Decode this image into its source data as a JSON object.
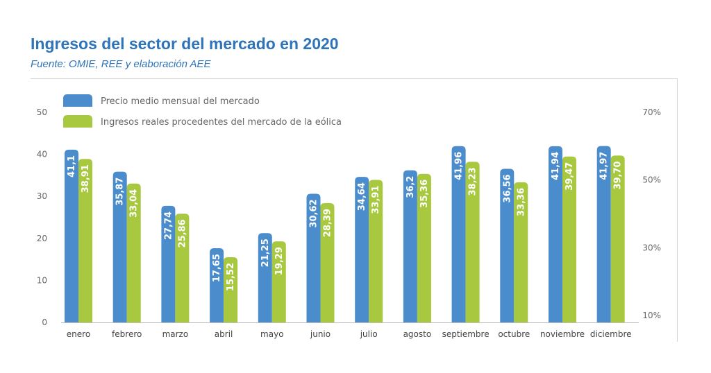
{
  "header": {
    "title": "Ingresos del sector del mercado en 2020",
    "subtitle": "Fuente: OMIE, REE y elaboración AEE"
  },
  "colors": {
    "title": "#2f73b8",
    "series1": "#4a8ccc",
    "series2": "#a8c93f"
  },
  "chart_data": {
    "type": "bar",
    "title": "Ingresos del sector del mercado en 2020",
    "subtitle": "Fuente: OMIE, REE y elaboración AEE",
    "categories": [
      "enero",
      "febrero",
      "marzo",
      "abril",
      "mayo",
      "junio",
      "julio",
      "agosto",
      "septiembre",
      "octubre",
      "noviembre",
      "diciembre"
    ],
    "series": [
      {
        "name": "Precio medio mensual del mercado",
        "values": [
          41.1,
          35.87,
          27.74,
          17.65,
          21.25,
          30.62,
          34.64,
          36.2,
          41.96,
          36.56,
          41.94,
          41.97
        ],
        "labels": [
          "41,1",
          "35,87",
          "27,74",
          "17,65",
          "21,25",
          "30,62",
          "34,64",
          "36,2",
          "41,96",
          "36,56",
          "41,94",
          "41,97"
        ]
      },
      {
        "name": "Ingresos reales procedentes del mercado de la eólica",
        "values": [
          38.91,
          33.04,
          25.86,
          15.52,
          19.29,
          28.39,
          33.91,
          35.36,
          38.23,
          33.36,
          39.47,
          39.7
        ],
        "labels": [
          "38,91",
          "33,04",
          "25,86",
          "15,52",
          "19,29",
          "28,39",
          "33,91",
          "35,36",
          "38,23",
          "33,36",
          "39,47",
          "39,70"
        ]
      }
    ],
    "ylim": [
      0,
      50
    ],
    "yticks": [
      "0",
      "10",
      "20",
      "30",
      "40",
      "50"
    ],
    "y2ticks": [
      "10%",
      "30%",
      "50%",
      "70%"
    ],
    "legend_position": "top-left",
    "grid": false
  }
}
